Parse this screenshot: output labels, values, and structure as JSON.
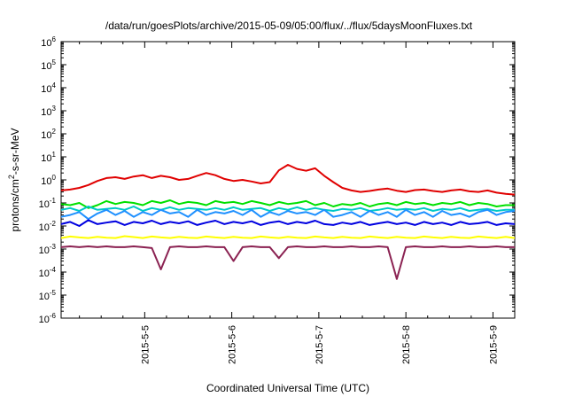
{
  "chart_data": {
    "type": "line",
    "title": "/data/run/goesPlots/archive/2015-05-09/05:00/flux/../flux/5daysMoonFluxes.txt",
    "xlabel": "Coordinated Universal Time (UTC)",
    "ylabel": {
      "prefix": "protons/cm",
      "sup": "2",
      "suffix": "-s-sr-MeV"
    },
    "yscale": "log",
    "ylim_exponents": [
      -6,
      6
    ],
    "y_ticks": [
      {
        "base": "10",
        "exp": "-6"
      },
      {
        "base": "10",
        "exp": "-5"
      },
      {
        "base": "10",
        "exp": "-4"
      },
      {
        "base": "10",
        "exp": "-3"
      },
      {
        "base": "10",
        "exp": "-2"
      },
      {
        "base": "10",
        "exp": "-1"
      },
      {
        "base": "10",
        "exp": "0"
      },
      {
        "base": "10",
        "exp": "1"
      },
      {
        "base": "10",
        "exp": "2"
      },
      {
        "base": "10",
        "exp": "3"
      },
      {
        "base": "10",
        "exp": "4"
      },
      {
        "base": "10",
        "exp": "5"
      },
      {
        "base": "10",
        "exp": "6"
      }
    ],
    "x_ticks": [
      "2015-5-5",
      "2015-5-6",
      "2015-5-7",
      "2015-5-8",
      "2015-5-9"
    ],
    "x_tick_days": [
      5,
      6,
      7,
      8,
      9
    ],
    "xlim_days": [
      4.04,
      9.25
    ],
    "grid": false,
    "legend": "none",
    "series": [
      {
        "color": "#e00000",
        "values": [
          0.35,
          0.38,
          0.45,
          0.6,
          0.9,
          1.2,
          1.3,
          1.1,
          1.4,
          1.6,
          1.2,
          1.5,
          1.3,
          1.0,
          1.1,
          1.5,
          2.0,
          1.6,
          1.1,
          0.9,
          1.0,
          0.85,
          0.7,
          0.8,
          2.6,
          4.5,
          3.0,
          2.5,
          3.2,
          1.5,
          0.8,
          0.45,
          0.35,
          0.3,
          0.33,
          0.38,
          0.42,
          0.34,
          0.3,
          0.36,
          0.38,
          0.33,
          0.3,
          0.35,
          0.38,
          0.32,
          0.3,
          0.35,
          0.28,
          0.25,
          0.23
        ]
      },
      {
        "color": "#00e000",
        "values": [
          0.09,
          0.08,
          0.1,
          0.06,
          0.08,
          0.12,
          0.09,
          0.11,
          0.1,
          0.08,
          0.12,
          0.1,
          0.13,
          0.09,
          0.11,
          0.1,
          0.08,
          0.12,
          0.1,
          0.11,
          0.09,
          0.12,
          0.1,
          0.08,
          0.11,
          0.09,
          0.1,
          0.12,
          0.08,
          0.1,
          0.07,
          0.09,
          0.08,
          0.1,
          0.07,
          0.09,
          0.1,
          0.08,
          0.11,
          0.09,
          0.1,
          0.08,
          0.1,
          0.09,
          0.11,
          0.08,
          0.1,
          0.09,
          0.07,
          0.08,
          0.08
        ]
      },
      {
        "color": "#00c8c8",
        "values": [
          0.05,
          0.06,
          0.045,
          0.07,
          0.05,
          0.055,
          0.06,
          0.05,
          0.07,
          0.045,
          0.06,
          0.05,
          0.065,
          0.05,
          0.06,
          0.055,
          0.05,
          0.06,
          0.05,
          0.065,
          0.05,
          0.055,
          0.06,
          0.045,
          0.06,
          0.05,
          0.065,
          0.05,
          0.06,
          0.05,
          0.045,
          0.055,
          0.05,
          0.06,
          0.045,
          0.05,
          0.06,
          0.05,
          0.055,
          0.05,
          0.06,
          0.045,
          0.055,
          0.05,
          0.06,
          0.045,
          0.05,
          0.055,
          0.045,
          0.05,
          0.05
        ]
      },
      {
        "color": "#1e90ff",
        "values": [
          0.025,
          0.03,
          0.04,
          0.02,
          0.035,
          0.05,
          0.03,
          0.045,
          0.025,
          0.04,
          0.03,
          0.05,
          0.035,
          0.04,
          0.025,
          0.05,
          0.03,
          0.04,
          0.035,
          0.045,
          0.03,
          0.05,
          0.025,
          0.04,
          0.03,
          0.045,
          0.035,
          0.04,
          0.03,
          0.05,
          0.025,
          0.03,
          0.04,
          0.025,
          0.045,
          0.03,
          0.04,
          0.025,
          0.05,
          0.03,
          0.04,
          0.025,
          0.045,
          0.03,
          0.035,
          0.025,
          0.04,
          0.05,
          0.03,
          0.04,
          0.045
        ]
      },
      {
        "color": "#0000e0",
        "values": [
          0.012,
          0.015,
          0.01,
          0.018,
          0.012,
          0.014,
          0.016,
          0.011,
          0.015,
          0.013,
          0.017,
          0.012,
          0.015,
          0.013,
          0.016,
          0.011,
          0.014,
          0.017,
          0.012,
          0.015,
          0.013,
          0.016,
          0.011,
          0.014,
          0.016,
          0.012,
          0.015,
          0.013,
          0.017,
          0.012,
          0.011,
          0.014,
          0.012,
          0.015,
          0.011,
          0.013,
          0.015,
          0.012,
          0.014,
          0.011,
          0.015,
          0.012,
          0.014,
          0.011,
          0.015,
          0.012,
          0.013,
          0.015,
          0.011,
          0.013,
          0.012
        ]
      },
      {
        "color": "#ffff00",
        "values": [
          0.003,
          0.0035,
          0.0032,
          0.003,
          0.0034,
          0.0031,
          0.003,
          0.0036,
          0.0033,
          0.003,
          0.0035,
          0.0032,
          0.003,
          0.0034,
          0.0031,
          0.003,
          0.0035,
          0.0032,
          0.003,
          0.0034,
          0.0031,
          0.003,
          0.0035,
          0.0032,
          0.003,
          0.0034,
          0.0031,
          0.003,
          0.0035,
          0.0032,
          0.003,
          0.0034,
          0.0031,
          0.003,
          0.0035,
          0.0032,
          0.003,
          0.0034,
          0.0031,
          0.003,
          0.0035,
          0.0032,
          0.003,
          0.0034,
          0.0031,
          0.003,
          0.0035,
          0.0032,
          0.003,
          0.0034,
          0.003
        ]
      },
      {
        "color": "#8b2252",
        "values": [
          0.0012,
          0.0013,
          0.0012,
          0.0013,
          0.0012,
          0.0013,
          0.0012,
          0.0012,
          0.0013,
          0.0012,
          0.0011,
          0.00013,
          0.0012,
          0.0013,
          0.0012,
          0.0012,
          0.0013,
          0.0012,
          0.0012,
          0.0003,
          0.0012,
          0.0013,
          0.0012,
          0.0012,
          0.0004,
          0.0012,
          0.0013,
          0.0012,
          0.0012,
          0.0013,
          0.0012,
          0.0012,
          0.0013,
          0.0012,
          0.0012,
          0.0013,
          0.0012,
          5e-05,
          0.0012,
          0.0013,
          0.0012,
          0.0012,
          0.0013,
          0.0012,
          0.0012,
          0.0013,
          0.0012,
          0.0012,
          0.0013,
          0.0012,
          0.0012
        ]
      }
    ]
  }
}
